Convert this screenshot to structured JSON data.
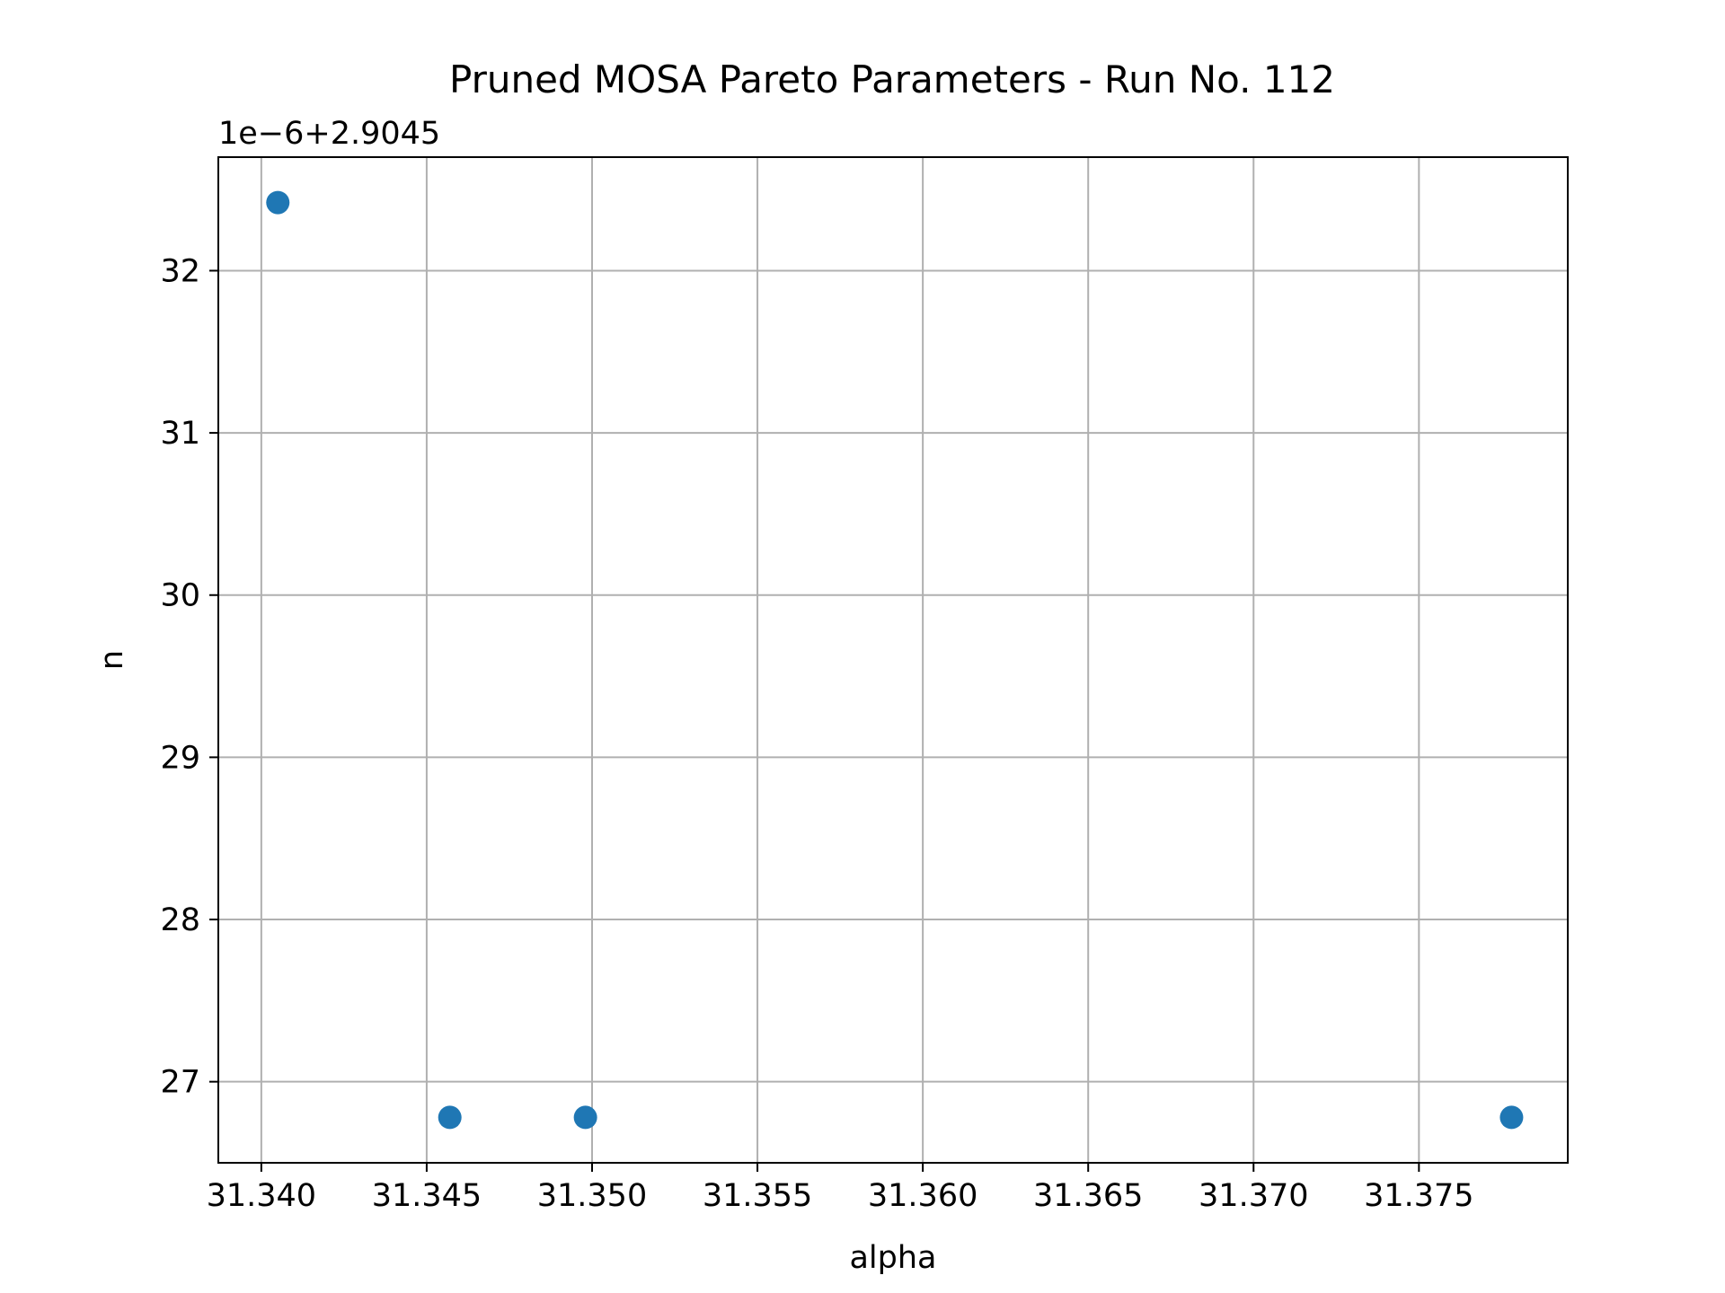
{
  "chart_data": {
    "type": "scatter",
    "title": "Pruned MOSA Pareto Parameters - Run No. 112",
    "xlabel": "alpha",
    "ylabel": "n",
    "offset_label": "1e−6+2.9045",
    "xlim": [
      31.3387,
      31.3795
    ],
    "ylim": [
      26.5,
      32.7
    ],
    "x_ticks": [
      31.34,
      31.345,
      31.35,
      31.355,
      31.36,
      31.365,
      31.37,
      31.375
    ],
    "x_tick_labels": [
      "31.340",
      "31.345",
      "31.350",
      "31.355",
      "31.360",
      "31.365",
      "31.370",
      "31.375"
    ],
    "y_ticks": [
      27,
      28,
      29,
      30,
      31,
      32
    ],
    "y_tick_labels": [
      "27",
      "28",
      "29",
      "30",
      "31",
      "32"
    ],
    "grid": true,
    "point_color": "#1f77b4",
    "points": [
      {
        "x": 31.3405,
        "y": 32.42
      },
      {
        "x": 31.3457,
        "y": 26.78
      },
      {
        "x": 31.3498,
        "y": 26.78
      },
      {
        "x": 31.3778,
        "y": 26.78
      }
    ]
  }
}
